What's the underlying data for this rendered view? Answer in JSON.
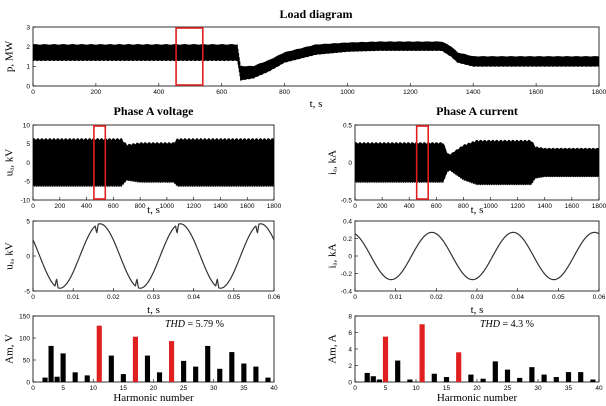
{
  "colors": {
    "axis": "#000000",
    "signal": "#000000",
    "wave": "#333333",
    "highlight": "#e02020",
    "bar_black": "#000000",
    "bar_red": "#e02020"
  },
  "chart_data": [
    {
      "id": "load",
      "type": "line",
      "title": "Load diagram",
      "xlabel": "t, s",
      "ylabel": "p, MW",
      "xlim": [
        0,
        1800
      ],
      "ylim": [
        0,
        3
      ],
      "xticks": [
        0,
        200,
        400,
        600,
        800,
        1000,
        1200,
        1400,
        1600,
        1800
      ],
      "yticks": [
        0,
        1,
        2,
        3
      ],
      "envelope": {
        "t": [
          0,
          650,
          660,
          700,
          750,
          800,
          900,
          1000,
          1100,
          1200,
          1300,
          1330,
          1350,
          1400,
          1500,
          1600,
          1800
        ],
        "upper": [
          2.1,
          2.1,
          1.0,
          1.0,
          1.3,
          1.7,
          2.1,
          2.2,
          2.25,
          2.25,
          2.25,
          2.0,
          1.7,
          1.5,
          1.5,
          1.5,
          1.5
        ],
        "lower": [
          1.3,
          1.3,
          0.3,
          0.4,
          0.75,
          1.2,
          1.6,
          1.75,
          1.8,
          1.8,
          1.8,
          1.5,
          1.2,
          1.0,
          1.0,
          1.0,
          1.0
        ]
      },
      "highlight_x": [
        455,
        540
      ],
      "grid": false
    },
    {
      "id": "voltage_trend",
      "type": "area",
      "title": "Phase A voltage",
      "xlabel": "t, s",
      "ylabel": "uₐ, kV",
      "xlim": [
        0,
        1800
      ],
      "ylim": [
        -10,
        10
      ],
      "xticks": [
        0,
        200,
        400,
        600,
        800,
        1000,
        1200,
        1400,
        1600,
        1800
      ],
      "yticks": [
        -10,
        -5,
        0,
        5,
        10
      ],
      "envelope": {
        "t": [
          0,
          660,
          700,
          800,
          1050,
          1080,
          1800
        ],
        "upper": [
          6,
          6,
          4.5,
          5,
          5,
          6,
          6
        ],
        "lower": [
          -6,
          -6,
          -4.5,
          -5,
          -5,
          -6,
          -6
        ]
      },
      "highlight_x": [
        455,
        540
      ],
      "grid": false
    },
    {
      "id": "current_trend",
      "type": "area",
      "title": "Phase A current",
      "xlabel": "t, s",
      "ylabel": "iₐ, kA",
      "xlim": [
        0,
        1800
      ],
      "ylim": [
        -0.5,
        0.5
      ],
      "xticks": [
        0,
        200,
        400,
        600,
        800,
        1000,
        1200,
        1400,
        1600,
        1800
      ],
      "yticks": [
        -0.5,
        0,
        0.5
      ],
      "envelope": {
        "t": [
          0,
          650,
          680,
          700,
          750,
          800,
          900,
          1300,
          1330,
          1400,
          1800
        ],
        "upper": [
          0.25,
          0.25,
          0.12,
          0.1,
          0.16,
          0.22,
          0.28,
          0.28,
          0.2,
          0.18,
          0.18
        ],
        "lower": [
          -0.25,
          -0.25,
          -0.12,
          -0.1,
          -0.16,
          -0.22,
          -0.28,
          -0.28,
          -0.2,
          -0.18,
          -0.18
        ]
      },
      "highlight_x": [
        455,
        540
      ],
      "grid": false
    },
    {
      "id": "voltage_wave",
      "type": "line",
      "xlabel": "t, s",
      "ylabel": "uₐ, kV",
      "xlim": [
        0,
        0.06
      ],
      "ylim": [
        -5,
        5
      ],
      "xticks": [
        0,
        0.01,
        0.02,
        0.03,
        0.04,
        0.05,
        0.06
      ],
      "yticks": [
        -5,
        0,
        5
      ],
      "waveform": {
        "amplitude": 4.6,
        "frequency_hz": 50,
        "phase_deg": 150,
        "notch_depth": 1.2
      },
      "grid": false
    },
    {
      "id": "current_wave",
      "type": "line",
      "xlabel": "t, s",
      "ylabel": "iₐ, kA",
      "xlim": [
        0,
        0.06
      ],
      "ylim": [
        -0.4,
        0.4
      ],
      "xticks": [
        0,
        0.01,
        0.02,
        0.03,
        0.04,
        0.05,
        0.06
      ],
      "yticks": [
        -0.4,
        -0.2,
        0,
        0.2,
        0.4
      ],
      "waveform": {
        "amplitude": 0.27,
        "frequency_hz": 50,
        "phase_deg": 110,
        "notch_depth": 0
      },
      "grid": false
    },
    {
      "id": "voltage_harmonics",
      "type": "bar",
      "xlabel": "Harmonic number",
      "ylabel": "Am, V",
      "xlim": [
        0,
        40
      ],
      "ylim": [
        0,
        150
      ],
      "xticks": [
        0,
        5,
        10,
        15,
        20,
        25,
        30,
        35,
        40
      ],
      "yticks": [
        0,
        50,
        100,
        150
      ],
      "annotation": {
        "label": "THD",
        "value": "= 5.79 %"
      },
      "x": [
        2,
        3,
        4,
        5,
        7,
        9,
        11,
        13,
        15,
        17,
        19,
        21,
        23,
        25,
        27,
        29,
        31,
        33,
        35,
        37,
        39
      ],
      "values": [
        10,
        82,
        12,
        65,
        22,
        15,
        128,
        60,
        18,
        103,
        60,
        22,
        93,
        48,
        35,
        82,
        30,
        68,
        42,
        35,
        10
      ],
      "highlighted": [
        11,
        17,
        23
      ],
      "grid": false
    },
    {
      "id": "current_harmonics",
      "type": "bar",
      "xlabel": "Harmonic number",
      "ylabel": "Am, A",
      "xlim": [
        0,
        40
      ],
      "ylim": [
        0,
        8
      ],
      "xticks": [
        0,
        5,
        10,
        15,
        20,
        25,
        30,
        35,
        40
      ],
      "yticks": [
        0,
        2,
        4,
        6,
        8
      ],
      "annotation": {
        "label": "THD",
        "value": "= 4.3 %"
      },
      "x": [
        2,
        3,
        4,
        5,
        7,
        9,
        11,
        13,
        15,
        17,
        19,
        21,
        23,
        25,
        27,
        29,
        31,
        33,
        35,
        37,
        39
      ],
      "values": [
        1.1,
        0.7,
        0.3,
        5.5,
        2.6,
        0.3,
        7.0,
        1.0,
        0.6,
        3.6,
        0.9,
        0.4,
        2.5,
        1.5,
        0.5,
        1.8,
        0.9,
        0.6,
        1.2,
        1.2,
        0.3
      ],
      "highlighted": [
        5,
        11,
        17
      ],
      "grid": false
    }
  ]
}
